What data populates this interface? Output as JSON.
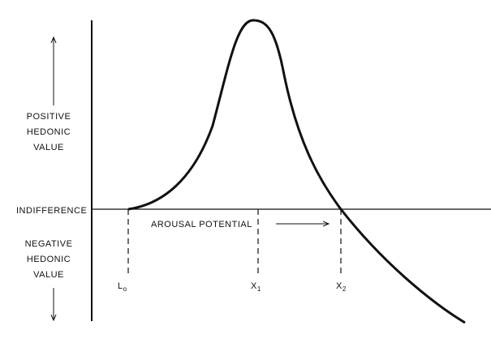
{
  "diagram": {
    "positive_label": [
      "POSITIVE",
      "HEDONIC",
      "VALUE"
    ],
    "negative_label": [
      "NEGATIVE",
      "HEDONIC",
      "VALUE"
    ],
    "indifference_label": "INDIFFERENCE",
    "axis_label": "AROUSAL POTENTIAL",
    "points": [
      {
        "main": "L",
        "sub": "o"
      },
      {
        "main": "X",
        "sub": "1"
      },
      {
        "main": "X",
        "sub": "2"
      }
    ]
  }
}
